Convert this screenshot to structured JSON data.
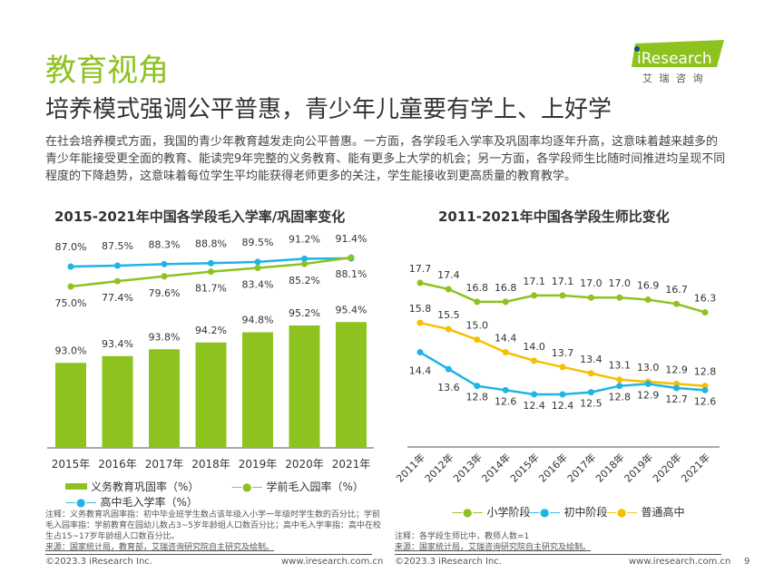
{
  "header": {
    "title": "教育视角",
    "subtitle": "培养模式强调公平普惠，青少年儿童要有学上、上好学",
    "intro": "在社会培养模式方面，我国的青少年教育越发走向公平普惠。一方面，各学段毛入学率及巩固率均逐年升高，这意味着越来越多的青少年能接受更全面的教育、能读完9年完整的义务教育、能有更多上大学的机会；另一方面，各学段师生比随时间推进均呈现不同程度的下降趋势，这意味着每位学生平均能获得老师更多的关注，学生能接收到更高质量的教育教学。"
  },
  "logo": {
    "brand": "iResearch",
    "cn": "艾 瑞 咨 询",
    "color": "#8dc21f"
  },
  "chart_data": [
    {
      "type": "bar+line",
      "title": "2015-2021年中国各学段毛入学率/巩固率变化",
      "categories": [
        "2015年",
        "2016年",
        "2017年",
        "2018年",
        "2019年",
        "2020年",
        "2021年"
      ],
      "series": [
        {
          "name": "义务教育巩固率（%）",
          "kind": "bar",
          "color": "#8dc21f",
          "values": [
            93.0,
            93.4,
            93.8,
            94.2,
            94.8,
            95.2,
            95.4
          ]
        },
        {
          "name": "学前毛入园率（%）",
          "kind": "line",
          "color": "#8dc21f",
          "values": [
            75.0,
            77.4,
            79.6,
            81.7,
            83.4,
            85.2,
            88.1
          ]
        },
        {
          "name": "高中毛入学率（%）",
          "kind": "line",
          "color": "#1eb4e6",
          "values": [
            87.0,
            87.5,
            88.3,
            88.8,
            89.5,
            91.2,
            91.4
          ]
        }
      ],
      "note": "注释：义务教育巩固率指：初中毕业班学生数占该年级入小学一年级时学生数的百分比；学前毛入园率指：学前教育在园幼儿数占3~5岁年龄组人口数百分比；高中毛入学率指：高中在校生占15~17岁年龄组人口数百分比。",
      "source": "来源：国家统计局，教育部，艾瑞咨询研究院自主研究及绘制。"
    },
    {
      "type": "line",
      "title": "2011-2021年中国各学段生师比变化",
      "categories": [
        "2011年",
        "2012年",
        "2013年",
        "2014年",
        "2015年",
        "2016年",
        "2017年",
        "2018年",
        "2019年",
        "2020年",
        "2021年"
      ],
      "series": [
        {
          "name": "小学阶段",
          "color": "#8dc21f",
          "values": [
            17.7,
            17.4,
            16.8,
            16.8,
            17.1,
            17.1,
            17.0,
            17.0,
            16.9,
            16.7,
            16.3
          ]
        },
        {
          "name": "初中阶段",
          "color": "#1eb4e6",
          "values": [
            14.4,
            13.6,
            12.8,
            12.6,
            12.4,
            12.4,
            12.5,
            12.8,
            12.9,
            12.7,
            12.6
          ]
        },
        {
          "name": "普通高中",
          "color": "#f5c000",
          "values": [
            15.8,
            15.5,
            15.0,
            14.4,
            14.0,
            13.7,
            13.4,
            13.1,
            13.0,
            12.9,
            12.8
          ]
        }
      ],
      "note": "注释：各学段生师比中，教师人数=1",
      "source": "来源：国家统计局，艾瑞咨询研究院自主研究及绘制。"
    }
  ],
  "footer": {
    "copyright": "©2023.3 iResearch Inc.",
    "url": "www.iresearch.com.cn",
    "page": "9"
  }
}
